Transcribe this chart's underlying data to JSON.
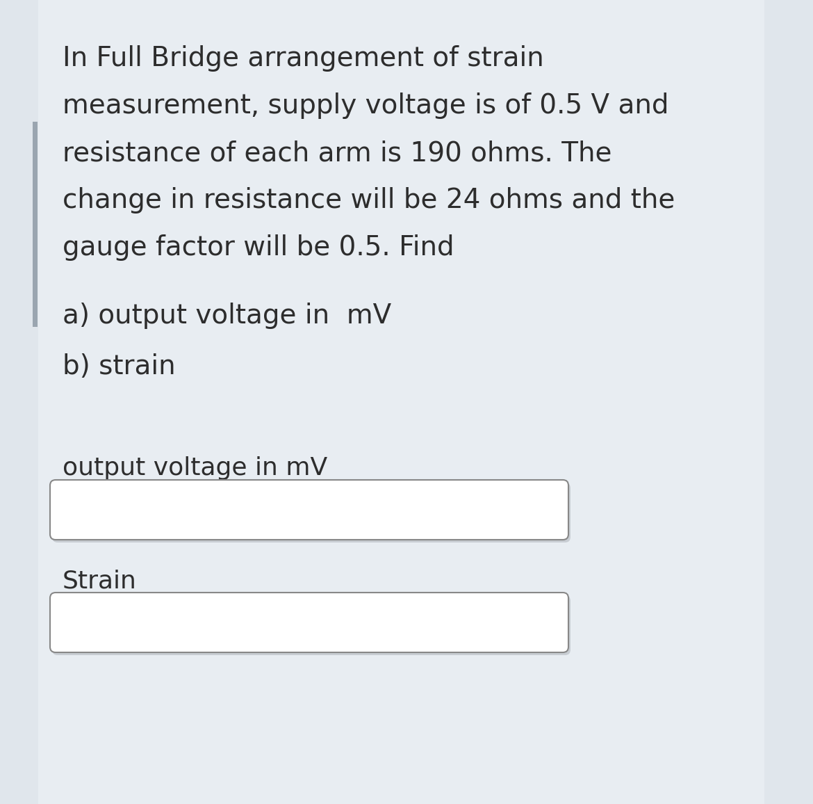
{
  "background_color": "#e8edf2",
  "left_panel_color": "#dde4eb",
  "left_bar_color": "#9aa5b0",
  "main_text_lines": [
    "In Full Bridge arrangement of strain",
    "measurement, supply voltage is of 0.5 V and",
    "resistance of each arm is 190 ohms. The",
    "change in resistance will be 24 ohms and the",
    "gauge factor will be 0.5. Find"
  ],
  "part_a": "a) output voltage in  mV",
  "part_b": "b) strain",
  "label1": "output voltage in mV",
  "label2": "Strain",
  "text_color": "#2d2d2d",
  "box_border": "#888888",
  "font_size_main": 28,
  "font_size_parts": 28,
  "font_size_labels": 26
}
